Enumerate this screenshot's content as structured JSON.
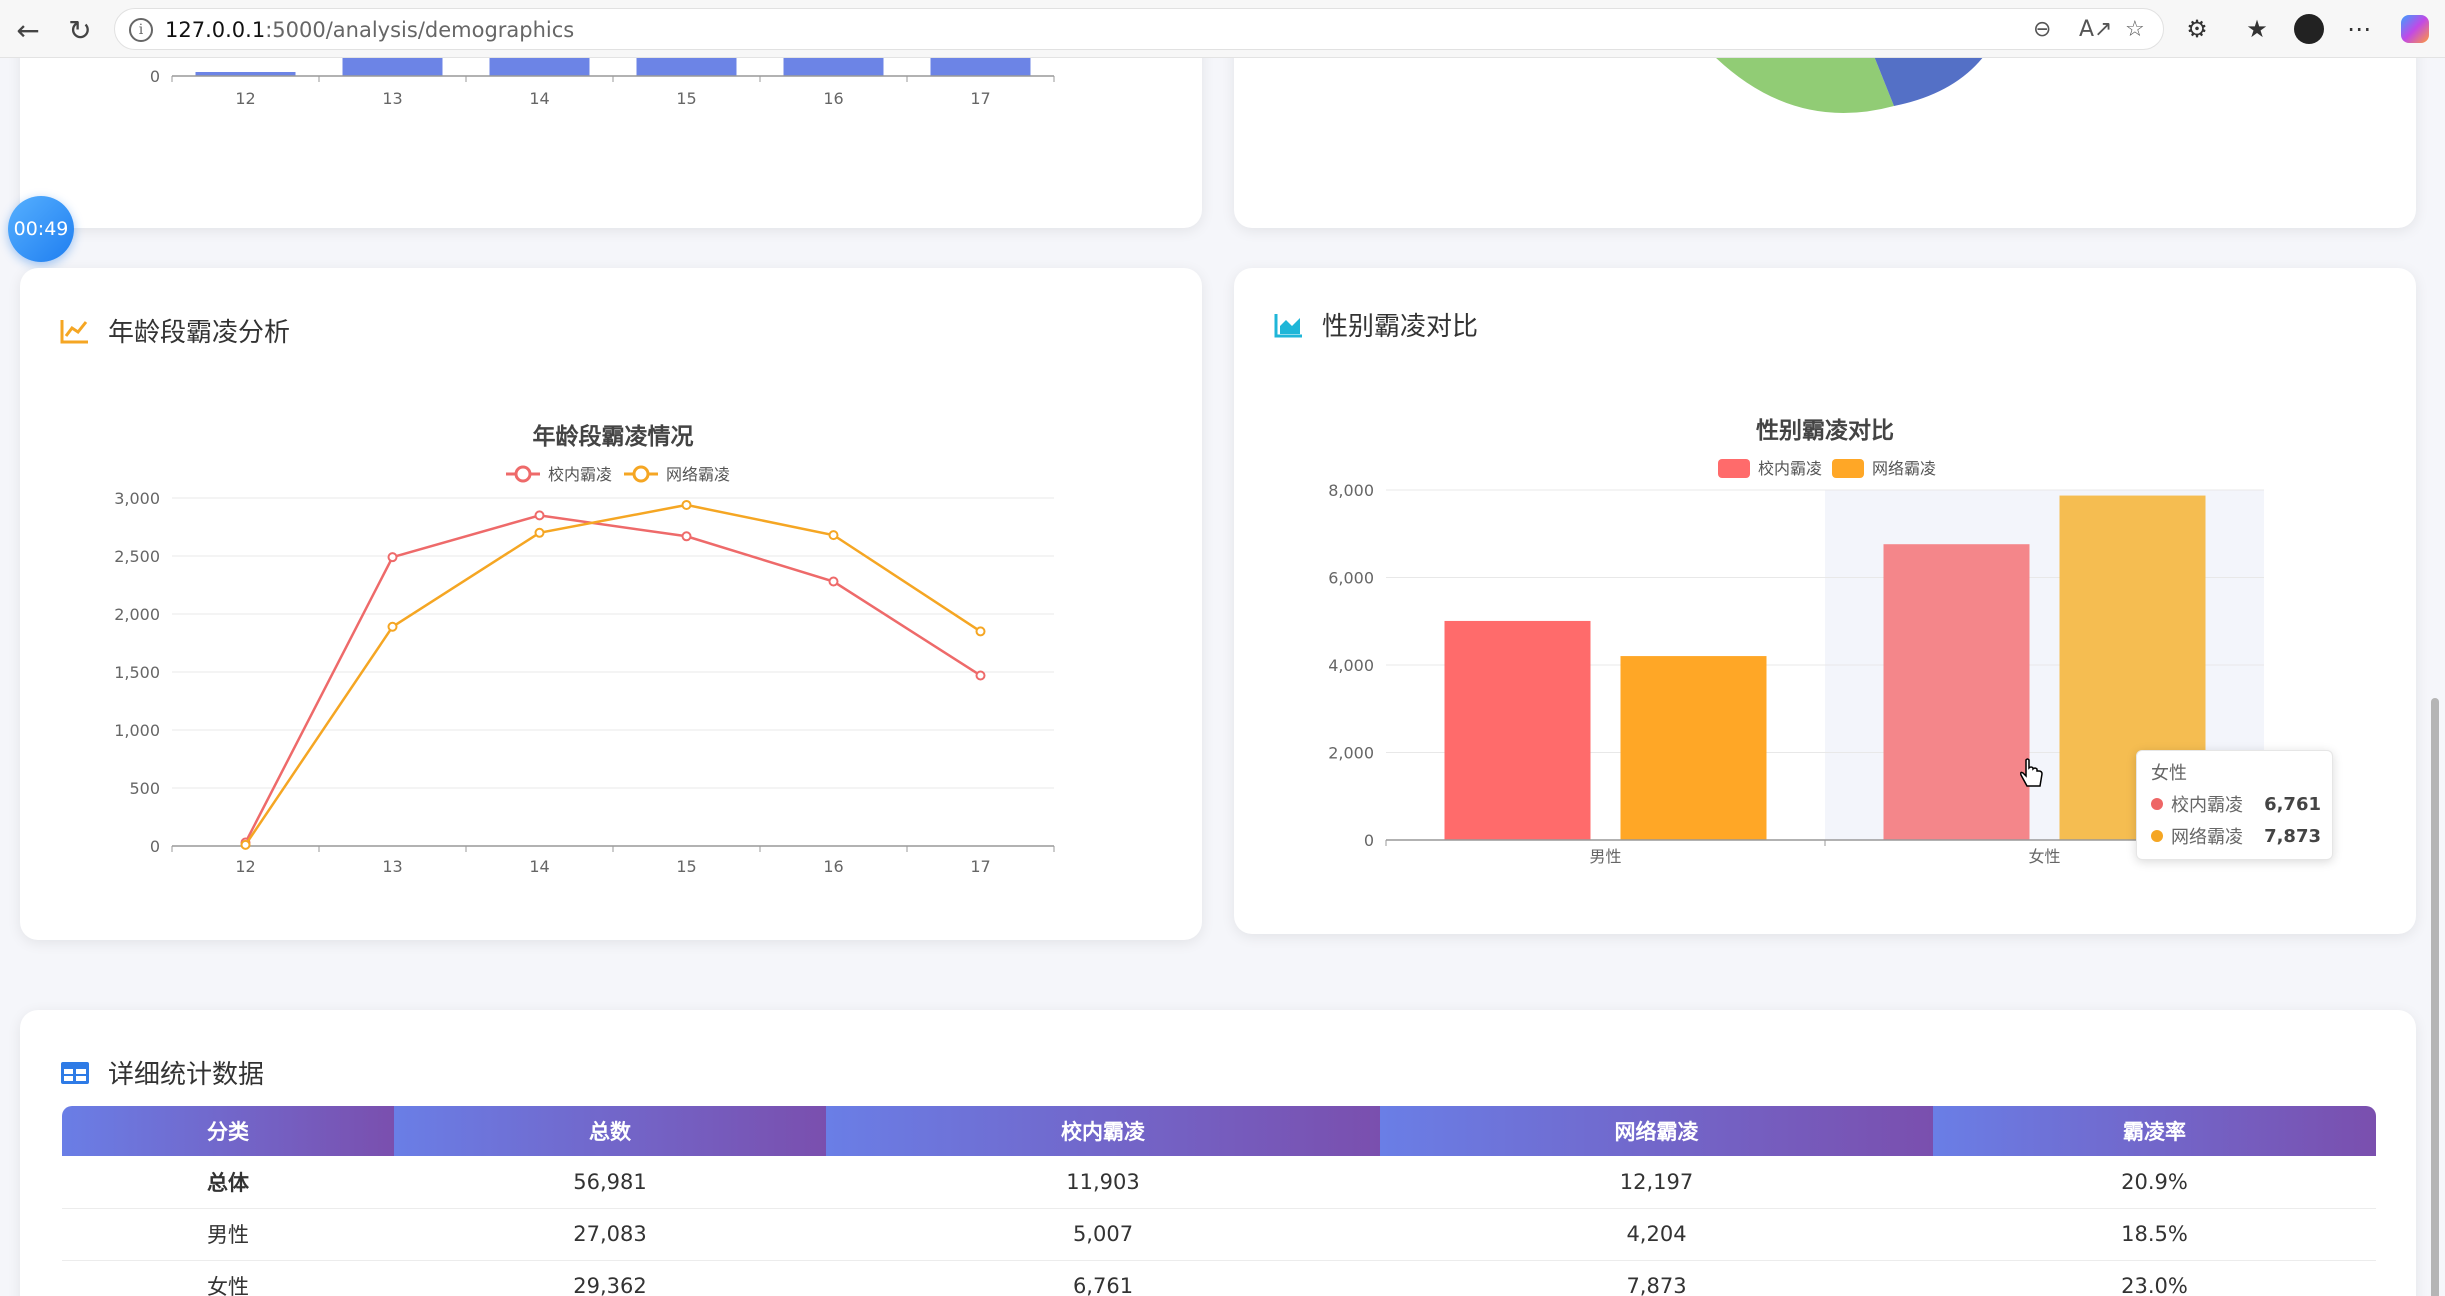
{
  "browser": {
    "url_host": "127.0.0.1",
    "url_rest": ":5000/analysis/demographics"
  },
  "timer": "00:49",
  "top_bar_chart": {
    "x_ticks": [
      "12",
      "13",
      "14",
      "15",
      "16",
      "17"
    ],
    "y_zero": "0"
  },
  "age_card": {
    "title": "年龄段霸凌分析"
  },
  "gender_card": {
    "title": "性别霸凌对比"
  },
  "table_card": {
    "title": "详细统计数据"
  },
  "chart_data": [
    {
      "type": "line",
      "title": "年龄段霸凌情况",
      "x": [
        "12",
        "13",
        "14",
        "15",
        "16",
        "17"
      ],
      "y_ticks": [
        "0",
        "500",
        "1,000",
        "1,500",
        "2,000",
        "2,500",
        "3,000"
      ],
      "ylim": [
        0,
        3000
      ],
      "legend_position": "top",
      "series": [
        {
          "name": "校内霸凌",
          "color": "#ee6a6a",
          "values": [
            30,
            2490,
            2850,
            2670,
            2280,
            1470
          ]
        },
        {
          "name": "网络霸凌",
          "color": "#f5a623",
          "values": [
            10,
            1890,
            2700,
            2940,
            2680,
            1850
          ]
        }
      ]
    },
    {
      "type": "bar",
      "title": "性别霸凌对比",
      "categories": [
        "男性",
        "女性"
      ],
      "y_ticks": [
        "0",
        "2,000",
        "4,000",
        "6,000",
        "8,000"
      ],
      "ylim": [
        0,
        8000
      ],
      "legend_position": "top",
      "series": [
        {
          "name": "校内霸凌",
          "color": "#ff6b6b",
          "values": [
            5007,
            6761
          ]
        },
        {
          "name": "网络霸凌",
          "color": "#ffa726",
          "values": [
            4204,
            7873
          ]
        }
      ]
    }
  ],
  "tooltip": {
    "title": "女性",
    "rows": [
      {
        "name": "校内霸凌",
        "value": "6,761",
        "color": "#ee6666"
      },
      {
        "name": "网络霸凌",
        "value": "7,873",
        "color": "#f5a623"
      }
    ]
  },
  "table": {
    "headers": [
      "分类",
      "总数",
      "校内霸凌",
      "网络霸凌",
      "霸凌率"
    ],
    "rows": [
      [
        "总体",
        "56,981",
        "11,903",
        "12,197",
        "20.9%"
      ],
      [
        "男性",
        "27,083",
        "5,007",
        "4,204",
        "18.5%"
      ],
      [
        "女性",
        "29,362",
        "6,761",
        "7,873",
        "23.0%"
      ]
    ]
  }
}
